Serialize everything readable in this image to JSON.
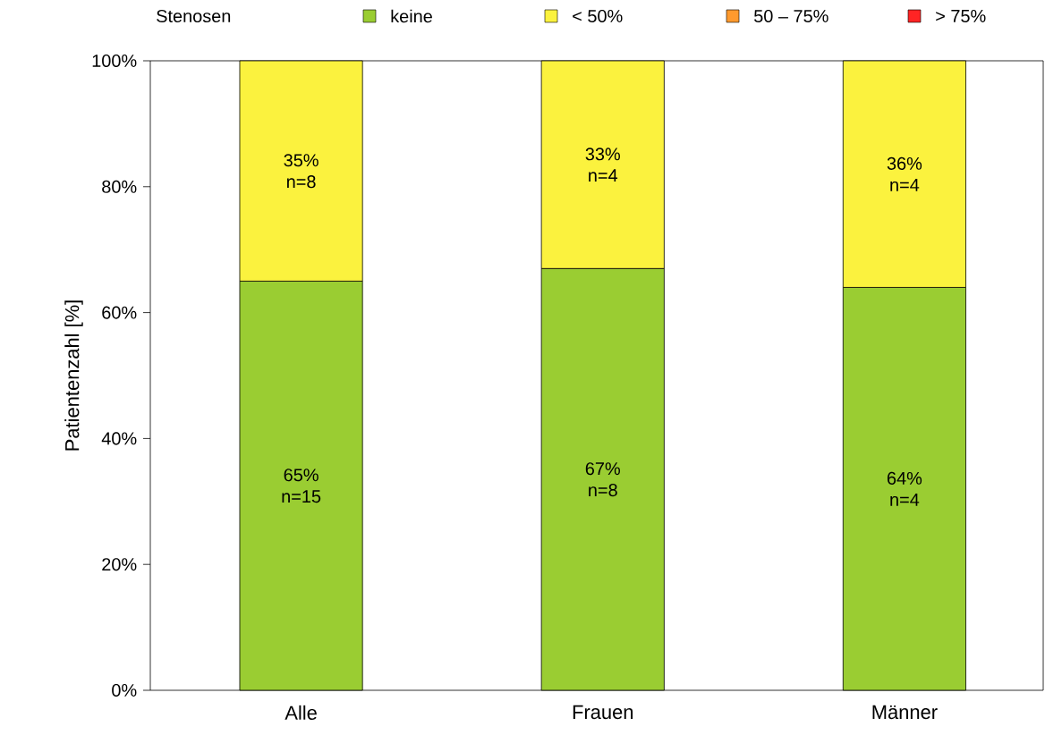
{
  "chart_data": {
    "type": "bar",
    "stacked": true,
    "ylabel": "Patientenzahl [%]",
    "legend_title": "Stenosen",
    "legend": "top",
    "categories": [
      "Alle",
      "Frauen",
      "Männer"
    ],
    "series": [
      {
        "name": "keine",
        "color": "#9acd32",
        "values": [
          65,
          67,
          64
        ],
        "value_labels": [
          "65% n=15",
          "67% n=8",
          "64% n=4"
        ]
      },
      {
        "name": "< 50%",
        "color": "#fbf23e",
        "values": [
          35,
          33,
          36
        ],
        "value_labels": [
          "35% n=8",
          "33% n=4",
          "36% n=4"
        ]
      },
      {
        "name": "50 – 75%",
        "color": "#ff9a2e",
        "values": [
          0,
          0,
          0
        ]
      },
      {
        "name": "> 75%",
        "color": "#ff2424",
        "values": [
          0,
          0,
          0
        ]
      }
    ],
    "ylim": [
      0,
      100
    ],
    "yticks": [
      {
        "value": 0,
        "label": "0%"
      },
      {
        "value": 20,
        "label": "20%"
      },
      {
        "value": 40,
        "label": "40%"
      },
      {
        "value": 60,
        "label": "60%"
      },
      {
        "value": 80,
        "label": "80%"
      },
      {
        "value": 100,
        "label": "100%"
      }
    ]
  }
}
